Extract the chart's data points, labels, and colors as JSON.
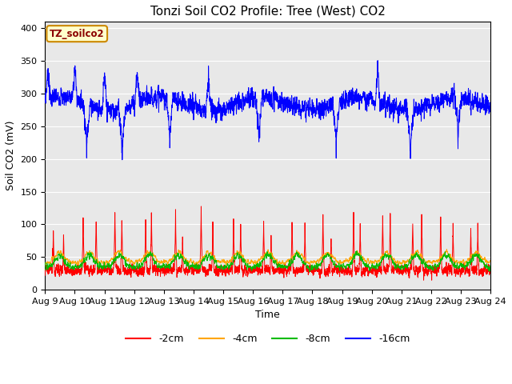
{
  "title": "Tonzi Soil CO2 Profile: Tree (West) CO2",
  "ylabel": "Soil CO2 (mV)",
  "xlabel": "Time",
  "ylim": [
    0,
    410
  ],
  "yticks": [
    0,
    50,
    100,
    150,
    200,
    250,
    300,
    350,
    400
  ],
  "xtick_labels": [
    "Aug 9",
    "Aug 10",
    "Aug 11",
    "Aug 12",
    "Aug 13",
    "Aug 14",
    "Aug 15",
    "Aug 16",
    "Aug 17",
    "Aug 18",
    "Aug 19",
    "Aug 20",
    "Aug 21",
    "Aug 22",
    "Aug 23",
    "Aug 24"
  ],
  "colors": {
    "blue": "#0000FF",
    "red": "#FF0000",
    "orange": "#FFA500",
    "green": "#00BB00"
  },
  "legend_labels": [
    "-2cm",
    "-4cm",
    "-8cm",
    "-16cm"
  ],
  "legend_colors": [
    "#FF0000",
    "#FFA500",
    "#00BB00",
    "#0000FF"
  ],
  "tag_label": "TZ_soilco2",
  "tag_bg": "#FFFFCC",
  "tag_border": "#CC8800",
  "bg_color": "#E8E8E8",
  "title_fontsize": 11,
  "axis_fontsize": 9,
  "tick_fontsize": 8,
  "legend_fontsize": 9
}
